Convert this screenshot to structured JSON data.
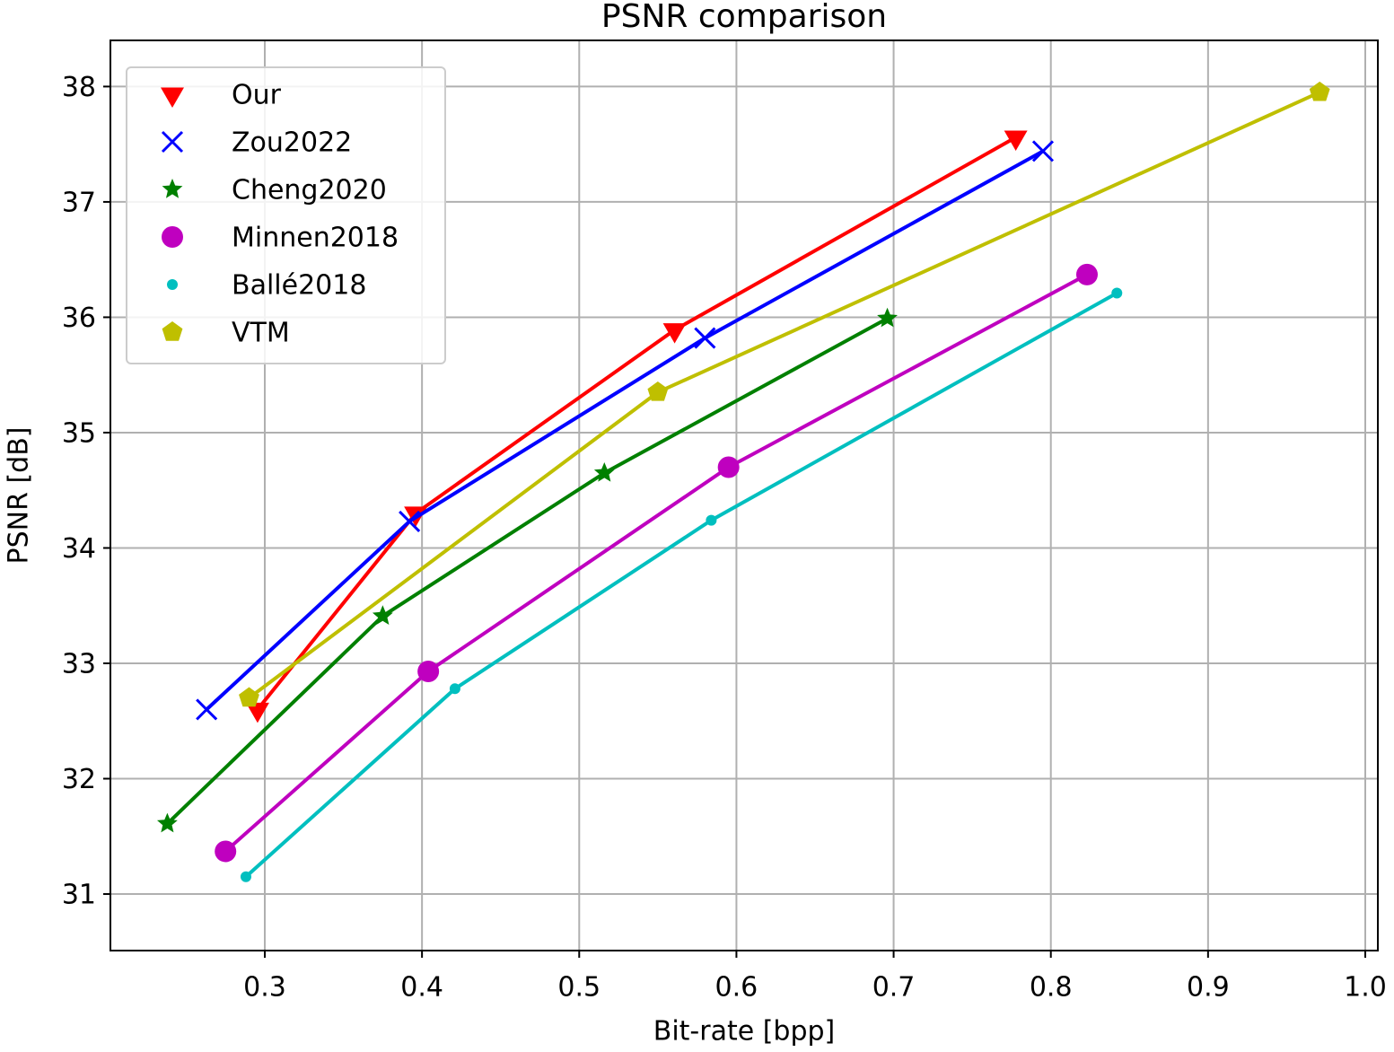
{
  "chart_data": {
    "type": "line",
    "title": "PSNR comparison",
    "x_label": "Bit-rate [bpp]",
    "y_label": "PSNR [dB]",
    "xlim": [
      0.2018,
      1.008
    ],
    "ylim": [
      30.51,
      38.4
    ],
    "xticks": [
      0.3,
      0.4,
      0.5,
      0.6,
      0.7,
      0.8,
      0.9,
      {
        "value": 1,
        "label": "1.0"
      }
    ],
    "yticks": [
      31,
      32,
      33,
      34,
      35,
      36,
      37,
      38
    ],
    "grid": true,
    "legend": "upper left",
    "series": [
      {
        "name": "Our",
        "color": "#ff0000",
        "marker": "triangle-down",
        "x": [
          0.2954,
          0.396,
          0.5607,
          0.7777
        ],
        "values": [
          32.6,
          34.3,
          35.89,
          37.56
        ]
      },
      {
        "name": "Zou2022",
        "color": "#0000ff",
        "marker": "x",
        "x": [
          0.263,
          0.392,
          0.58,
          0.795
        ],
        "values": [
          32.6,
          34.23,
          35.82,
          37.44
        ]
      },
      {
        "name": "Cheng2020",
        "color": "#008000",
        "marker": "star",
        "x": [
          0.238,
          0.375,
          0.516,
          0.696
        ],
        "values": [
          31.61,
          33.41,
          34.65,
          35.99
        ]
      },
      {
        "name": "Minnen2018",
        "color": "#bf00bf",
        "marker": "circle",
        "x": [
          0.275,
          0.404,
          0.595,
          0.823
        ],
        "values": [
          31.37,
          32.93,
          34.7,
          36.37
        ]
      },
      {
        "name": "Ballé2018",
        "color": "#00bfbf",
        "marker": "point",
        "x": [
          0.288,
          0.421,
          0.584,
          0.842
        ],
        "values": [
          31.15,
          32.78,
          34.24,
          36.21
        ]
      },
      {
        "name": "VTM",
        "color": "#bfbf00",
        "marker": "pentagon",
        "x": [
          0.29,
          0.55,
          0.971
        ],
        "values": [
          32.7,
          35.35,
          37.95
        ]
      }
    ]
  }
}
